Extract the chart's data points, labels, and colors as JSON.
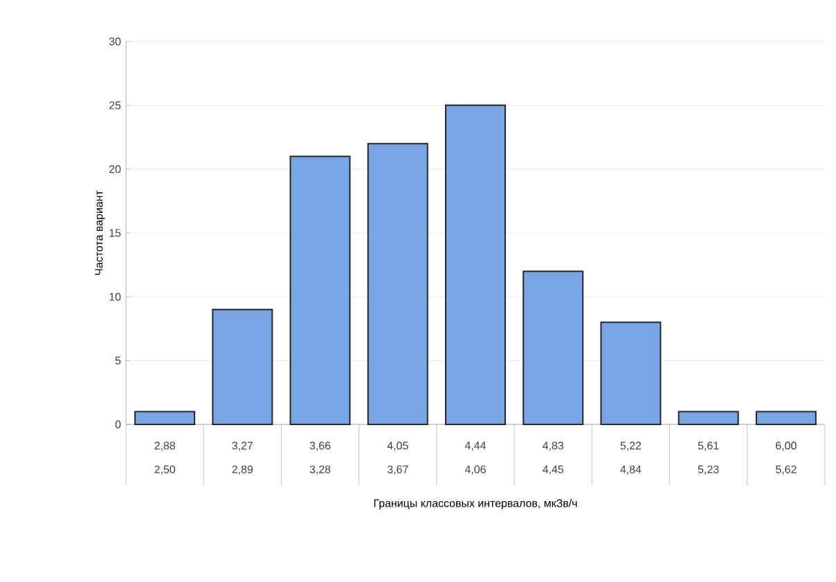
{
  "chart_data": {
    "type": "bar",
    "xlabel": "Границы классовых интервалов, мкЗв/ч",
    "ylabel": "Частота вариант",
    "categories": [
      "2,88",
      "3,27",
      "3,66",
      "4,05",
      "4,44",
      "4,83",
      "5,22",
      "5,61",
      "6,00"
    ],
    "annotations": [
      "2,50",
      "2,89",
      "3,28",
      "3,67",
      "4,06",
      "4,45",
      "4,84",
      "5,23",
      "5,62"
    ],
    "values": [
      1,
      9,
      21,
      22,
      25,
      12,
      8,
      1,
      1
    ],
    "color": "#77a5e6",
    "ylim": [
      0,
      30
    ],
    "yticks": [
      0,
      5,
      10,
      15,
      20,
      25,
      30
    ],
    "grid": "y"
  }
}
